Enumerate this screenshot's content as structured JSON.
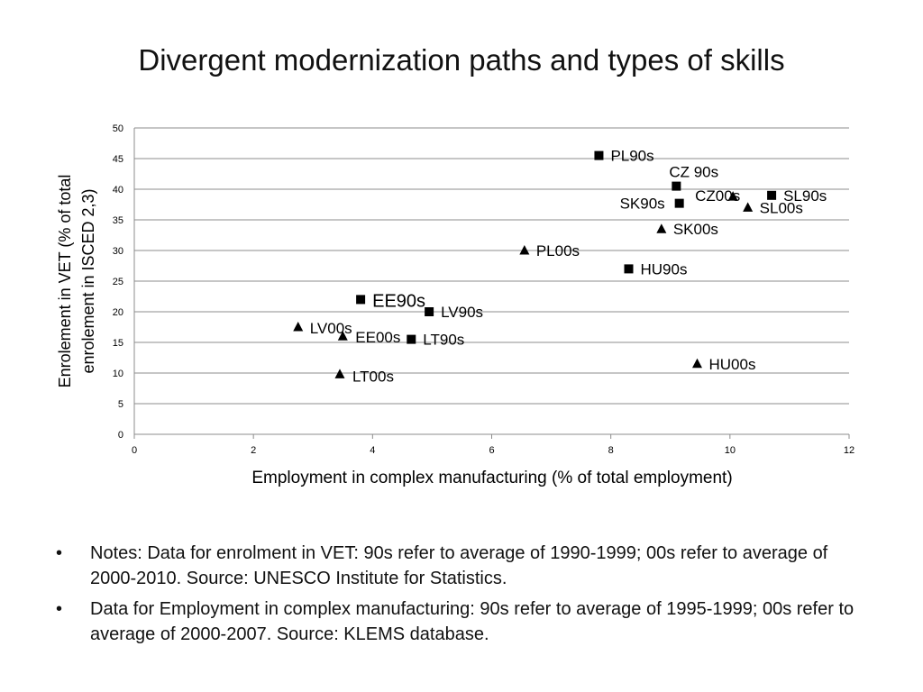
{
  "slide": {
    "title": "Divergent modernization paths and types of skills",
    "notes": [
      "Notes: Data for enrolment in VET: 90s refer to average of 1990-1999; 00s refer to average of 2000-2010. Source: UNESCO Institute for Statistics.",
      "Data for Employment in complex manufacturing: 90s refer to average of 1995-1999; 00s refer to average of 2000-2007. Source: KLEMS database."
    ],
    "bullet_glyph": "•"
  },
  "chart_data": {
    "type": "scatter",
    "xlabel": "Employment in complex manufacturing (% of total employment)",
    "ylabel": "Enrolement in VET (% of total enrolement in ISCED 2,3)",
    "xlim": [
      0,
      12
    ],
    "ylim": [
      0,
      50
    ],
    "x_ticks": [
      0,
      2,
      4,
      6,
      8,
      10,
      12
    ],
    "y_ticks": [
      0,
      5,
      10,
      15,
      20,
      25,
      30,
      35,
      40,
      45,
      50
    ],
    "grid": "horizontal",
    "legend": "none",
    "series": [
      {
        "marker": "square",
        "points": [
          {
            "label": "PL90s",
            "x": 7.8,
            "y": 45.5
          },
          {
            "label": "CZ 90s",
            "x": 9.1,
            "y": 40.5
          },
          {
            "label": "SK90s",
            "x": 9.15,
            "y": 37.7
          },
          {
            "label": "SL90s",
            "x": 10.7,
            "y": 39.0
          },
          {
            "label": "HU90s",
            "x": 8.3,
            "y": 27.0
          },
          {
            "label": "EE90s",
            "x": 3.8,
            "y": 22.0
          },
          {
            "label": "LV90s",
            "x": 4.95,
            "y": 20.0
          },
          {
            "label": "LT90s",
            "x": 4.65,
            "y": 15.5
          }
        ]
      },
      {
        "marker": "triangle",
        "points": [
          {
            "label": "CZ00s",
            "x": 10.05,
            "y": 38.8
          },
          {
            "label": "SL00s",
            "x": 10.3,
            "y": 37.0
          },
          {
            "label": "SK00s",
            "x": 8.85,
            "y": 33.5
          },
          {
            "label": "PL00s",
            "x": 6.55,
            "y": 30.0
          },
          {
            "label": "LV00s",
            "x": 2.75,
            "y": 17.5
          },
          {
            "label": "EE00s",
            "x": 3.5,
            "y": 16.0
          },
          {
            "label": "LT00s",
            "x": 3.45,
            "y": 9.8
          },
          {
            "label": "HU00s",
            "x": 9.45,
            "y": 11.5
          }
        ]
      }
    ]
  }
}
